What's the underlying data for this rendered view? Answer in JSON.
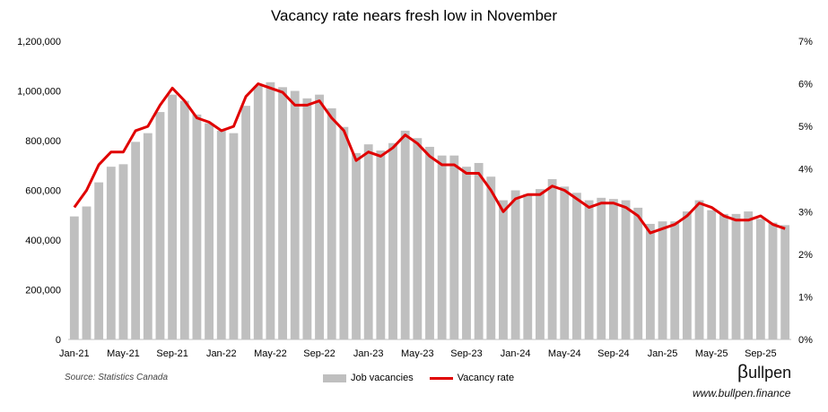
{
  "chart_data": {
    "type": "bar+line",
    "title": "Vacancy rate nears fresh low in November",
    "x": [
      "Jan-21",
      "Feb-21",
      "Mar-21",
      "Apr-21",
      "May-21",
      "Jun-21",
      "Jul-21",
      "Aug-21",
      "Sep-21",
      "Oct-21",
      "Nov-21",
      "Dec-21",
      "Jan-22",
      "Feb-22",
      "Mar-22",
      "Apr-22",
      "May-22",
      "Jun-22",
      "Jul-22",
      "Aug-22",
      "Sep-22",
      "Oct-22",
      "Nov-22",
      "Dec-22",
      "Jan-23",
      "Feb-23",
      "Mar-23",
      "Apr-23",
      "May-23",
      "Jun-23",
      "Jul-23",
      "Aug-23",
      "Sep-23",
      "Oct-23",
      "Nov-23",
      "Dec-23",
      "Jan-24",
      "Feb-24",
      "Mar-24",
      "Apr-24",
      "May-24",
      "Jun-24",
      "Jul-24",
      "Aug-24",
      "Sep-24",
      "Oct-24",
      "Nov-24",
      "Dec-24",
      "Jan-25",
      "Feb-25",
      "Mar-25",
      "Apr-25",
      "May-25",
      "Jun-25",
      "Jul-25",
      "Aug-25",
      "Sep-25",
      "Oct-25",
      "Nov-25"
    ],
    "x_tick_labels": [
      "Jan-21",
      "May-21",
      "Sep-21",
      "Jan-22",
      "May-22",
      "Sep-22",
      "Jan-23",
      "May-23",
      "Sep-23",
      "Jan-24",
      "May-24",
      "Sep-24",
      "Jan-25",
      "May-25",
      "Sep-25"
    ],
    "series": [
      {
        "name": "Job vacancies",
        "type": "bar",
        "axis": "left",
        "color": "#bfbfbf",
        "values": [
          495000,
          535000,
          632000,
          695000,
          705000,
          795000,
          830000,
          915000,
          985000,
          960000,
          905000,
          870000,
          840000,
          830000,
          940000,
          1020000,
          1035000,
          1015000,
          1000000,
          970000,
          985000,
          930000,
          855000,
          750000,
          785000,
          760000,
          790000,
          840000,
          810000,
          775000,
          740000,
          740000,
          695000,
          710000,
          655000,
          560000,
          600000,
          585000,
          605000,
          645000,
          615000,
          590000,
          560000,
          570000,
          565000,
          560000,
          530000,
          465000,
          475000,
          475000,
          515000,
          560000,
          520000,
          505000,
          505000,
          515000,
          485000,
          470000,
          460000
        ]
      },
      {
        "name": "Vacancy rate",
        "type": "line",
        "axis": "right",
        "unit": "%",
        "color": "#e00000",
        "values": [
          3.1,
          3.5,
          4.1,
          4.4,
          4.4,
          4.9,
          5.0,
          5.5,
          5.9,
          5.6,
          5.2,
          5.1,
          4.9,
          5.0,
          5.7,
          6.0,
          5.9,
          5.8,
          5.5,
          5.5,
          5.6,
          5.2,
          4.9,
          4.2,
          4.4,
          4.3,
          4.5,
          4.8,
          4.6,
          4.3,
          4.1,
          4.1,
          3.9,
          3.9,
          3.5,
          3.0,
          3.3,
          3.4,
          3.4,
          3.6,
          3.5,
          3.3,
          3.1,
          3.2,
          3.2,
          3.1,
          2.9,
          2.5,
          2.6,
          2.7,
          2.9,
          3.2,
          3.1,
          2.9,
          2.8,
          2.8,
          2.9,
          2.7,
          2.6
        ]
      }
    ],
    "y_left": {
      "ylim": [
        0,
        1200000
      ],
      "ticks": [
        "0",
        "200,000",
        "400,000",
        "600,000",
        "800,000",
        "1,000,000",
        "1,200,000"
      ]
    },
    "y_right": {
      "ylim": [
        0,
        7
      ],
      "ticks": [
        "0%",
        "1%",
        "2%",
        "3%",
        "4%",
        "5%",
        "6%",
        "7%"
      ]
    },
    "grid": false,
    "legend": "bottom-center"
  },
  "source": "Source: Statistics Canada",
  "brand": {
    "beta": "β",
    "name": "ullpen"
  },
  "website": "www.bullpen.finance"
}
